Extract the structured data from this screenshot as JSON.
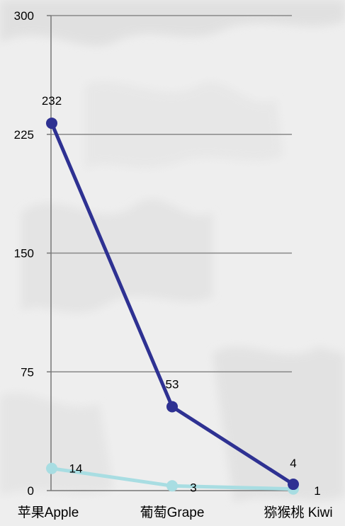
{
  "chart_data": {
    "type": "line",
    "categories": [
      "苹果Apple",
      "葡萄Grape",
      "猕猴桃 Kiwi"
    ],
    "series": [
      {
        "values": [
          232,
          53,
          4
        ],
        "labels": [
          "232",
          "53",
          "4"
        ],
        "color": "#2e3192"
      },
      {
        "values": [
          14,
          3,
          1
        ],
        "labels": [
          "14",
          "3",
          "1"
        ],
        "color": "#a8dde2"
      }
    ],
    "yticks": [
      "0",
      "75",
      "150",
      "225",
      "300"
    ],
    "ylim": [
      0,
      300
    ],
    "grid": true,
    "colors": {
      "background": "#eeeeee",
      "gridline": "#888888",
      "axis": "#777777"
    }
  }
}
